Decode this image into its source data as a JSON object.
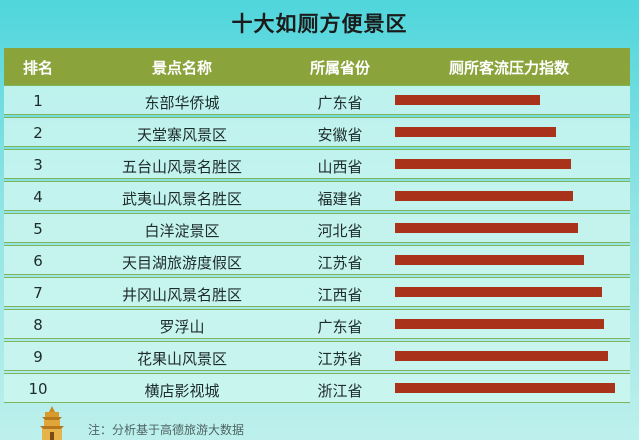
{
  "title": "十大如厕方便景区",
  "headers": {
    "rank": "排名",
    "name": "景点名称",
    "province": "所属省份",
    "index": "厕所客流压力指数"
  },
  "rows": [
    {
      "rank": "1",
      "name": "东部华侨城",
      "province": "广东省"
    },
    {
      "rank": "2",
      "name": "天堂寨风景区",
      "province": "安徽省"
    },
    {
      "rank": "3",
      "name": "五台山风景名胜区",
      "province": "山西省"
    },
    {
      "rank": "4",
      "name": "武夷山风景名胜区",
      "province": "福建省"
    },
    {
      "rank": "5",
      "name": "白洋淀景区",
      "province": "河北省"
    },
    {
      "rank": "6",
      "name": "天目湖旅游度假区",
      "province": "江苏省"
    },
    {
      "rank": "7",
      "name": "井冈山风景名胜区",
      "province": "江西省"
    },
    {
      "rank": "8",
      "name": "罗浮山",
      "province": "广东省"
    },
    {
      "rank": "9",
      "name": "花果山风景区",
      "province": "江苏省"
    },
    {
      "rank": "10",
      "name": "横店影视城",
      "province": "浙江省"
    }
  ],
  "chart_data": {
    "type": "bar",
    "categories": [
      "东部华侨城",
      "天堂寨风景区",
      "五台山风景名胜区",
      "武夷山风景名胜区",
      "白洋淀景区",
      "天目湖旅游度假区",
      "井冈山风景名胜区",
      "罗浮山",
      "花果山风景区",
      "横店影视城"
    ],
    "values": [
      0.66,
      0.73,
      0.8,
      0.81,
      0.83,
      0.86,
      0.94,
      0.95,
      0.97,
      1.0
    ],
    "title": "十大如厕方便景区",
    "ylabel": "厕所客流压力指数",
    "bar_color": "#a8321a"
  },
  "note": "注：分析基于高德旅游大数据",
  "colors": {
    "header_bg": "#8aa33a",
    "bar": "#a8321a"
  }
}
